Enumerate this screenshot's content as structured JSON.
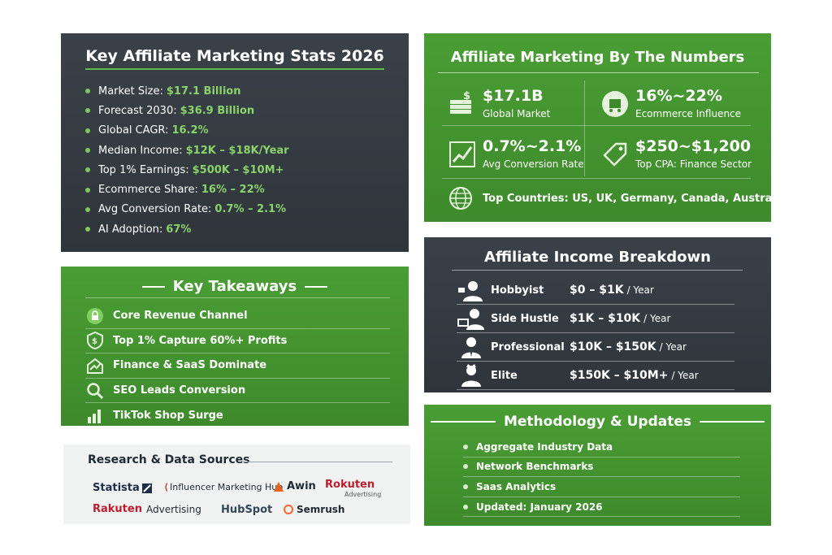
{
  "stats_panel": {
    "title": "Key Affiliate Marketing Stats 2026",
    "items": [
      {
        "label": "Market Size:",
        "value": "$17.1 Billion"
      },
      {
        "label": "Forecast 2030:",
        "value": "$36.9 Billion"
      },
      {
        "label": "Global CAGR:",
        "value": "16.2%"
      },
      {
        "label": "Median Income:",
        "value": "$12K – $18K/Year"
      },
      {
        "label": "Top 1% Earnings:",
        "value": "$500K – $10M+"
      },
      {
        "label": "Ecommerce Share:",
        "value": "16% – 22%"
      },
      {
        "label": "Avg Conversion Rate:",
        "value": "0.7% – 2.1%"
      },
      {
        "label": "AI Adoption:",
        "value": "67%"
      }
    ]
  },
  "numbers_panel": {
    "title": "Affiliate Marketing By The Numbers",
    "cells": [
      {
        "big": "$17.1B",
        "small": "Global Market",
        "icon": "money-stack-icon"
      },
      {
        "big": "16%~22%",
        "small": "Ecommerce Influence",
        "icon": "shopping-cart-icon"
      },
      {
        "big": "0.7%~2.1%",
        "small": "Avg Conversion Rate",
        "icon": "growth-chart-icon"
      },
      {
        "big": "$250~$1,200",
        "small": "Top CPA: Finance Sector",
        "icon": "price-tag-icon"
      }
    ],
    "countries": "Top Countries: US, UK, Germany, Canada, Australia"
  },
  "takeaways_panel": {
    "title": "Key Takeaways",
    "items": [
      {
        "label": "Core Revenue Channel",
        "icon": "lock-icon"
      },
      {
        "label": "Top 1% Capture 60%+ Profits",
        "icon": "dollar-shield-icon"
      },
      {
        "label": "Finance & SaaS Dominate",
        "icon": "trend-up-icon"
      },
      {
        "label": "SEO Leads Conversion",
        "icon": "magnifier-icon"
      },
      {
        "label": "TikTok Shop Surge",
        "icon": "bar-chart-icon"
      }
    ]
  },
  "sources_panel": {
    "title": "Research & Data Sources",
    "logos": [
      "Statista",
      "Influencer Marketing Hub",
      "Awin",
      "Rokuten",
      "Advertising",
      "Rakuten",
      "Advertising",
      "HubSpot",
      "Semrush"
    ]
  },
  "income_panel": {
    "title": "Affiliate Income Breakdown",
    "per_year": "/ Year",
    "rows": [
      {
        "tier": "Hobbyist",
        "range": "$0 – $1K"
      },
      {
        "tier": "Side Hustle",
        "range": "$1K – $10K"
      },
      {
        "tier": "Professional",
        "range": "$10K – $150K"
      },
      {
        "tier": "Elite",
        "range": "$150K – $10M+"
      }
    ]
  },
  "methodology_panel": {
    "title": "Methodology & Updates",
    "items": [
      "Aggregate Industry Data",
      "Network Benchmarks",
      "Saas Analytics",
      "Updated: January 2026"
    ]
  },
  "colors": {
    "green": "#4a9d34",
    "dark": "#353b41",
    "accent": "#8ad36a"
  }
}
